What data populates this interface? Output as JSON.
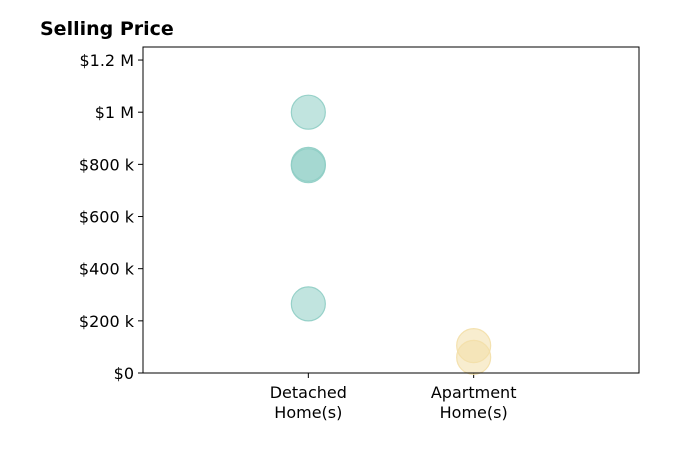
{
  "chart_data": {
    "type": "scatter",
    "title": "Selling Price",
    "xlabel": "",
    "ylabel": "",
    "categories": [
      {
        "lines": [
          "Detached",
          "Home(s)"
        ]
      },
      {
        "lines": [
          "Apartment",
          "Home(s)"
        ]
      }
    ],
    "xlim": [
      -1,
      2
    ],
    "ylim": [
      0,
      1250000
    ],
    "yticks": [
      {
        "value": 0,
        "label": "$0"
      },
      {
        "value": 200000,
        "label": "$200 k"
      },
      {
        "value": 400000,
        "label": "$400 k"
      },
      {
        "value": 600000,
        "label": "$600 k"
      },
      {
        "value": 800000,
        "label": "$800 k"
      },
      {
        "value": 1000000,
        "label": "$1 M"
      },
      {
        "value": 1200000,
        "label": "$1.2 M"
      }
    ],
    "series": [
      {
        "category_index": 0,
        "color": "#8ecdc4",
        "values": [
          1000000,
          800000,
          795000,
          265000
        ]
      },
      {
        "category_index": 1,
        "color": "#f3dfa8",
        "values": [
          105000,
          60000
        ]
      }
    ],
    "grid": false,
    "legend": "none"
  }
}
